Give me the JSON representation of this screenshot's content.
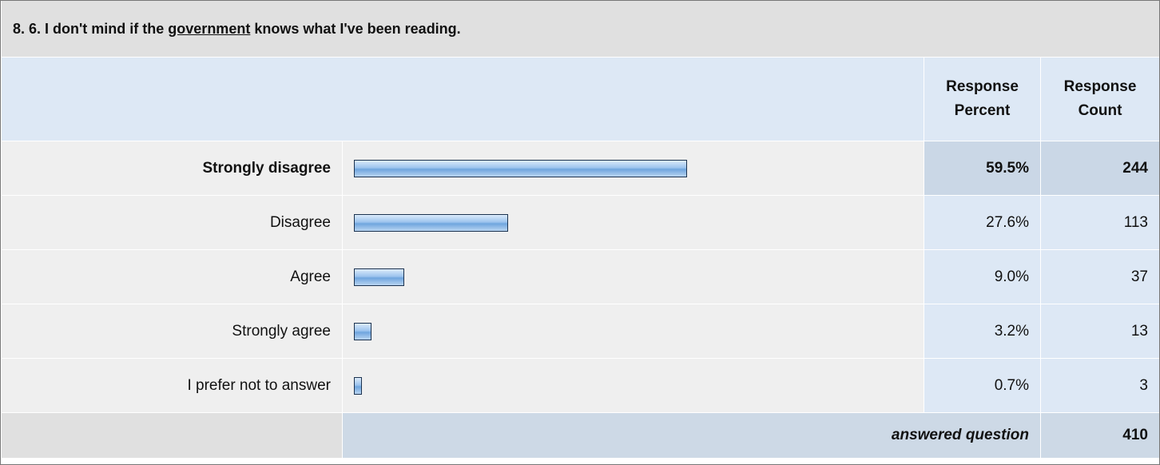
{
  "question": {
    "before": "8. 6. I don't mind if the ",
    "link": "government",
    "after": " knows what I've been reading."
  },
  "header": {
    "percent": "Response Percent",
    "count": "Response Count"
  },
  "table": {
    "rows": [
      {
        "label": "Strongly disagree",
        "percent": 59.5,
        "percent_label": "59.5%",
        "count": "244"
      },
      {
        "label": "Disagree",
        "percent": 27.6,
        "percent_label": "27.6%",
        "count": "113"
      },
      {
        "label": "Agree",
        "percent": 9.0,
        "percent_label": "9.0%",
        "count": "37"
      },
      {
        "label": "Strongly agree",
        "percent": 3.2,
        "percent_label": "3.2%",
        "count": "13"
      },
      {
        "label": "I prefer not to answer",
        "percent": 0.7,
        "percent_label": "0.7%",
        "count": "3"
      }
    ]
  },
  "footer": {
    "label": "answered question",
    "count": "410"
  }
}
